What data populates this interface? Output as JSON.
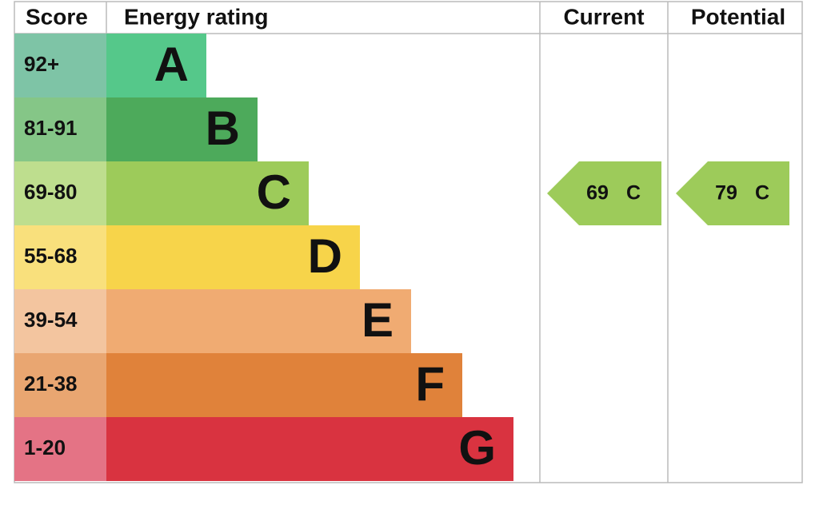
{
  "header": {
    "score": "Score",
    "rating": "Energy rating",
    "current": "Current",
    "potential": "Potential"
  },
  "bands": [
    {
      "score": "92+",
      "letter": "A",
      "color": "#55c88a",
      "score_color": "#7ec4a6"
    },
    {
      "score": "81-91",
      "letter": "B",
      "color": "#4daa5b",
      "score_color": "#85c687"
    },
    {
      "score": "69-80",
      "letter": "C",
      "color": "#9dcb5a",
      "score_color": "#bede8e"
    },
    {
      "score": "55-68",
      "letter": "D",
      "color": "#f7d44a",
      "score_color": "#f9e07c"
    },
    {
      "score": "39-54",
      "letter": "E",
      "color": "#f0ab72",
      "score_color": "#f3c59f"
    },
    {
      "score": "21-38",
      "letter": "F",
      "color": "#e0823a",
      "score_color": "#e9a671"
    },
    {
      "score": "1-20",
      "letter": "G",
      "color": "#d93340",
      "score_color": "#e47385"
    }
  ],
  "current": {
    "value": 69,
    "band": "C"
  },
  "potential": {
    "value": 79,
    "band": "C"
  }
}
